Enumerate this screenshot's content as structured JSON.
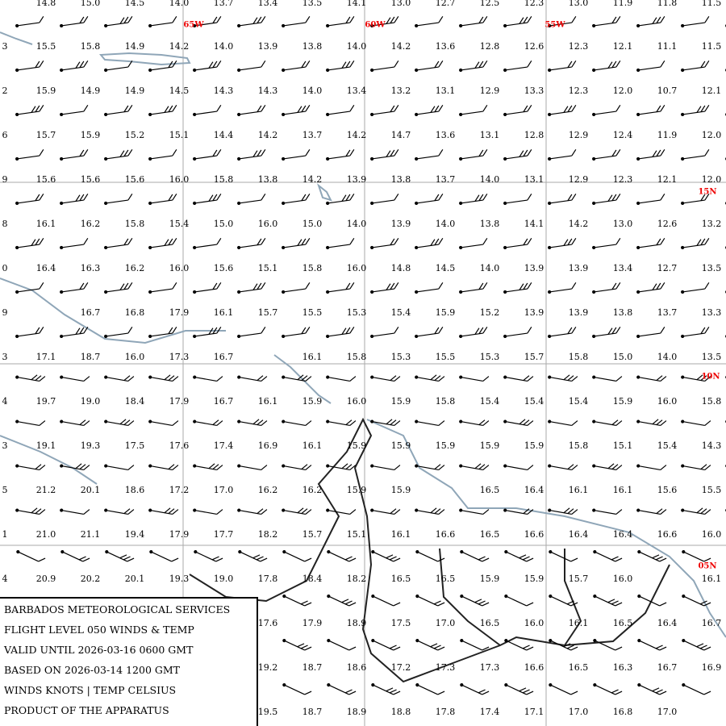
{
  "map_labels": {
    "lon": [
      "65W",
      "60W",
      "55W"
    ],
    "lat": [
      "15N",
      "10N",
      "05N"
    ]
  },
  "temperature_grid": [
    [
      null,
      "14.8",
      "15.0",
      "14.5",
      "14.0",
      "13.7",
      "13.4",
      "13.5",
      "14.1",
      "13.0",
      "12.7",
      "12.5",
      "12.3",
      "13.0",
      "11.9",
      "11.8",
      "11.5"
    ],
    [
      "3",
      "15.5",
      "15.8",
      "14.9",
      "14.2",
      "14.0",
      "13.9",
      "13.8",
      "14.0",
      "14.2",
      "13.6",
      "12.8",
      "12.6",
      "12.3",
      "12.1",
      "11.1",
      "11.5"
    ],
    [
      "2",
      "15.9",
      "14.9",
      "14.9",
      "14.5",
      "14.3",
      "14.3",
      "14.0",
      "13.4",
      "13.2",
      "13.1",
      "12.9",
      "13.3",
      "12.3",
      "12.0",
      "10.7",
      "12.1"
    ],
    [
      "6",
      "15.7",
      "15.9",
      "15.2",
      "15.1",
      "14.4",
      "14.2",
      "13.7",
      "14.2",
      "14.7",
      "13.6",
      "13.1",
      "12.8",
      "12.9",
      "12.4",
      "11.9",
      "12.0"
    ],
    [
      "9",
      "15.6",
      "15.6",
      "15.6",
      "16.0",
      "15.8",
      "13.8",
      "14.2",
      "13.9",
      "13.8",
      "13.7",
      "14.0",
      "13.1",
      "12.9",
      "12.3",
      "12.1",
      "12.0"
    ],
    [
      "8",
      "16.1",
      "16.2",
      "15.8",
      "15.4",
      "15.0",
      "16.0",
      "15.0",
      "14.0",
      "13.9",
      "14.0",
      "13.8",
      "14.1",
      "14.2",
      "13.0",
      "12.6",
      "13.2"
    ],
    [
      "0",
      "16.4",
      "16.3",
      "16.2",
      "16.0",
      "15.6",
      "15.1",
      "15.8",
      "16.0",
      "14.8",
      "14.5",
      "14.0",
      "13.9",
      "13.9",
      "13.4",
      "12.7",
      "13.5"
    ],
    [
      "9",
      null,
      "16.7",
      "16.8",
      "17.9",
      "16.1",
      "15.7",
      "15.5",
      "15.3",
      "15.4",
      "15.9",
      "15.2",
      "13.9",
      "13.9",
      "13.8",
      "13.7",
      "13.3"
    ],
    [
      "3",
      "17.1",
      "18.7",
      "16.0",
      "17.3",
      "16.7",
      null,
      "16.1",
      "15.8",
      "15.3",
      "15.5",
      "15.3",
      "15.7",
      "15.8",
      "15.0",
      "14.0",
      "13.5"
    ],
    [
      "4",
      "19.7",
      "19.0",
      "18.4",
      "17.9",
      "16.7",
      "16.1",
      "15.9",
      "16.0",
      "15.9",
      "15.8",
      "15.4",
      "15.4",
      "15.4",
      "15.9",
      "16.0",
      "15.8"
    ],
    [
      "3",
      "19.1",
      "19.3",
      "17.5",
      "17.6",
      "17.4",
      "16.9",
      "16.1",
      "15.9",
      "15.9",
      "15.9",
      "15.9",
      "15.9",
      "15.8",
      "15.1",
      "15.4",
      "14.3"
    ],
    [
      "5",
      "21.2",
      "20.1",
      "18.6",
      "17.2",
      "17.0",
      "16.2",
      "16.2",
      "15.9",
      "15.9",
      null,
      "16.5",
      "16.4",
      "16.1",
      "16.1",
      "15.6",
      "15.5"
    ],
    [
      "1",
      "21.0",
      "21.1",
      "19.4",
      "17.9",
      "17.7",
      "18.2",
      "15.7",
      "15.1",
      "16.1",
      "16.6",
      "16.5",
      "16.6",
      "16.4",
      "16.4",
      "16.6",
      "16.0"
    ],
    [
      "4",
      "20.9",
      "20.2",
      "20.1",
      "19.3",
      "19.0",
      "17.8",
      "18.4",
      "18.2",
      "16.5",
      "16.5",
      "15.9",
      "15.9",
      "15.7",
      "16.0",
      null,
      "16.1"
    ],
    [
      null,
      null,
      null,
      null,
      null,
      null,
      "17.6",
      "17.9",
      "18.9",
      "17.5",
      "17.0",
      "16.5",
      "16.0",
      "16.1",
      "16.5",
      "16.4",
      "16.7"
    ],
    [
      null,
      null,
      null,
      null,
      null,
      null,
      "19.2",
      "18.7",
      "18.6",
      "17.2",
      "17.3",
      "17.3",
      "16.6",
      "16.5",
      "16.3",
      "16.7",
      "16.9"
    ],
    [
      null,
      null,
      null,
      null,
      null,
      null,
      "19.5",
      "18.7",
      "18.9",
      "18.8",
      "17.8",
      "17.4",
      "17.1",
      "17.0",
      "16.8",
      "17.0",
      null
    ]
  ],
  "info_box": [
    "BARBADOS METEOROLOGICAL SERVICES",
    "FLIGHT LEVEL 050 WINDS & TEMP",
    "VALID UNTIL 2026-03-16 0600 GMT",
    "BASED ON 2026-03-14 1200 GMT",
    "WINDS KNOTS | TEMP CELSIUS",
    "PRODUCT OF THE APPARATUS"
  ]
}
